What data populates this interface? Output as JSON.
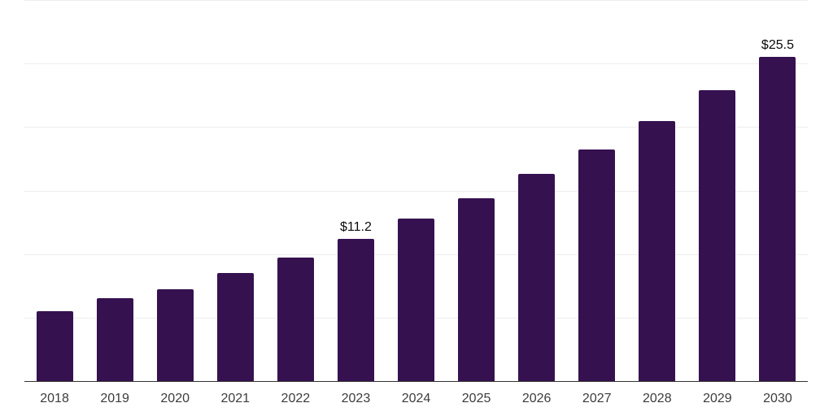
{
  "chart_data": {
    "type": "bar",
    "title": "",
    "xlabel": "",
    "ylabel": "",
    "categories": [
      "2018",
      "2019",
      "2020",
      "2021",
      "2022",
      "2023",
      "2024",
      "2025",
      "2026",
      "2027",
      "2028",
      "2029",
      "2030"
    ],
    "values": [
      5.5,
      6.5,
      7.2,
      8.5,
      9.7,
      11.2,
      12.8,
      14.4,
      16.3,
      18.2,
      20.5,
      22.9,
      25.5
    ],
    "data_labels": {
      "2023": "$11.2",
      "2030": "$25.5"
    },
    "ylim": [
      0,
      30
    ],
    "y_gridline_step": 5,
    "y_axis_labels_visible": false,
    "grid": true,
    "legend": false,
    "colors": {
      "bar": "#361150",
      "gridline": "#ededed",
      "axis_line": "#333333",
      "tick_label": "#3c3c3c",
      "data_label": "#0a0a0a",
      "background": "#ffffff"
    }
  }
}
